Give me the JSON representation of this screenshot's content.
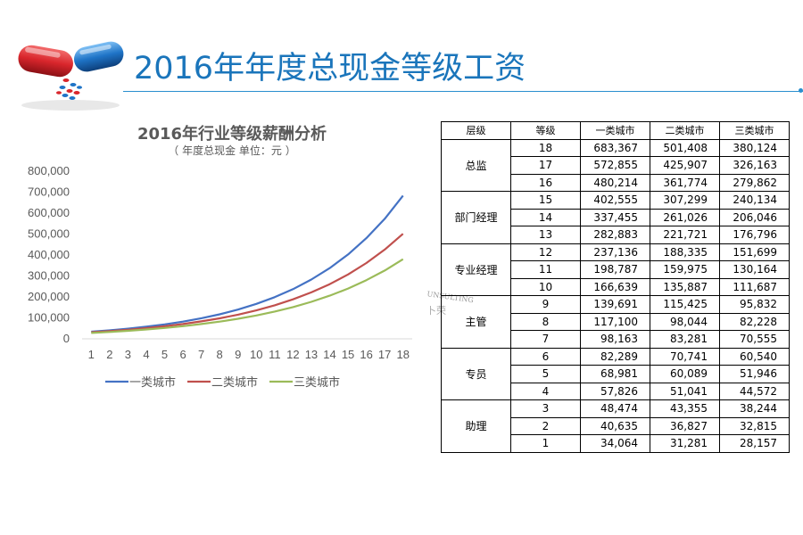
{
  "page": {
    "title": "2016年年度总现金等级工资"
  },
  "logo": {
    "icon": "capsule-pills-icon",
    "colors": {
      "red": "#d9262c",
      "blue": "#1f74c7"
    }
  },
  "watermark": {
    "line1": "UNSULTING",
    "line2": "卜荣"
  },
  "chart_data": {
    "type": "line",
    "title": "2016年行业等级薪酬分析",
    "subtitle": "（ 年度总现金   单位：元 ）",
    "x": [
      "1",
      "2",
      "3",
      "4",
      "5",
      "6",
      "7",
      "8",
      "9",
      "10",
      "11",
      "12",
      "13",
      "14",
      "15",
      "16",
      "17",
      "18"
    ],
    "ylim": [
      0,
      800000
    ],
    "yticks": [
      "0",
      "100,000",
      "200,000",
      "300,000",
      "400,000",
      "500,000",
      "600,000",
      "700,000",
      "800,000"
    ],
    "grid": false,
    "legend_position": "bottom",
    "series": [
      {
        "name": "一类城市",
        "color": "#4472c4",
        "values": [
          34064,
          40635,
          48474,
          57826,
          68981,
          82289,
          98163,
          117100,
          139691,
          166639,
          198787,
          237136,
          282883,
          337455,
          402555,
          480214,
          572855,
          683367
        ]
      },
      {
        "name": "二类城市",
        "color": "#c0504d",
        "values": [
          31281,
          36827,
          43355,
          51041,
          60089,
          70741,
          83281,
          98044,
          115425,
          135887,
          159975,
          188335,
          221721,
          261026,
          307299,
          361774,
          425907,
          501408
        ]
      },
      {
        "name": "三类城市",
        "color": "#9bbb59",
        "values": [
          28157,
          32815,
          38244,
          44572,
          51946,
          60540,
          70555,
          82228,
          95832,
          111687,
          130164,
          151699,
          176796,
          206046,
          240134,
          279862,
          326163,
          380124
        ]
      }
    ]
  },
  "table": {
    "headers": [
      "层级",
      "等级",
      "一类城市",
      "二类城市",
      "三类城市"
    ],
    "groups": [
      {
        "level": "总监",
        "rows": [
          [
            "18",
            "683,367",
            "501,408",
            "380,124"
          ],
          [
            "17",
            "572,855",
            "425,907",
            "326,163"
          ],
          [
            "16",
            "480,214",
            "361,774",
            "279,862"
          ]
        ]
      },
      {
        "level": "部门经理",
        "rows": [
          [
            "15",
            "402,555",
            "307,299",
            "240,134"
          ],
          [
            "14",
            "337,455",
            "261,026",
            "206,046"
          ],
          [
            "13",
            "282,883",
            "221,721",
            "176,796"
          ]
        ]
      },
      {
        "level": "专业经理",
        "rows": [
          [
            "12",
            "237,136",
            "188,335",
            "151,699"
          ],
          [
            "11",
            "198,787",
            "159,975",
            "130,164"
          ],
          [
            "10",
            "166,639",
            "135,887",
            "111,687"
          ]
        ]
      },
      {
        "level": "主管",
        "rows": [
          [
            "9",
            "139,691",
            "115,425",
            "95,832"
          ],
          [
            "8",
            "117,100",
            "98,044",
            "82,228"
          ],
          [
            "7",
            "98,163",
            "83,281",
            "70,555"
          ]
        ]
      },
      {
        "level": "专员",
        "rows": [
          [
            "6",
            "82,289",
            "70,741",
            "60,540"
          ],
          [
            "5",
            "68,981",
            "60,089",
            "51,946"
          ],
          [
            "4",
            "57,826",
            "51,041",
            "44,572"
          ]
        ]
      },
      {
        "level": "助理",
        "rows": [
          [
            "3",
            "48,474",
            "43,355",
            "38,244"
          ],
          [
            "2",
            "40,635",
            "36,827",
            "32,815"
          ],
          [
            "1",
            "34,064",
            "31,281",
            "28,157"
          ]
        ]
      }
    ]
  }
}
